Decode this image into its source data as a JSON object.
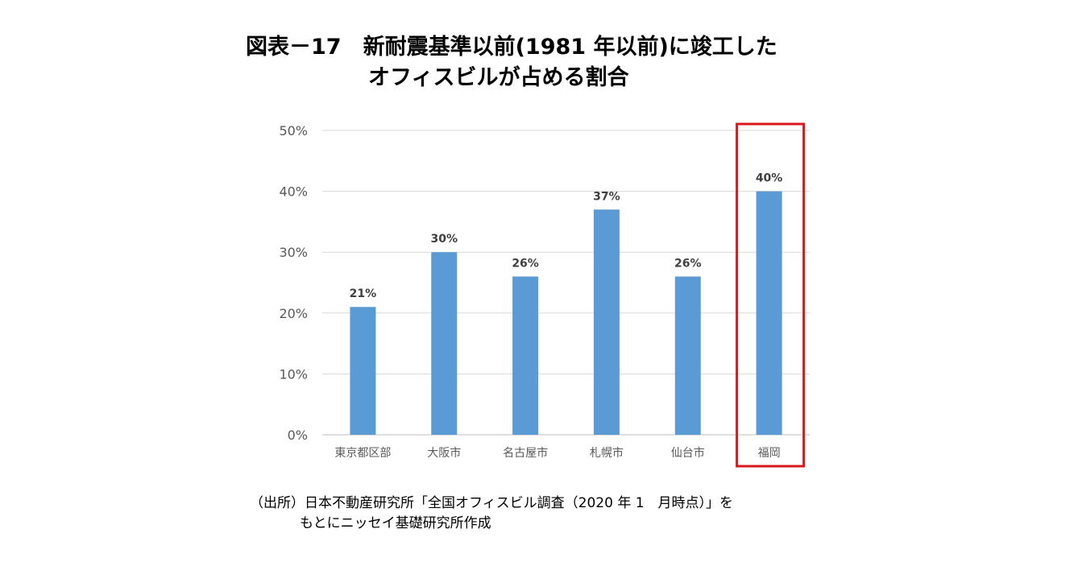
{
  "title_line1": "図表－17　新耐震基準以前(1981 年以前)に竣工した",
  "title_line2": "オフィスビルが占める割合",
  "source_line1": "（出所）日本不動産研究所「全国オフィスビル調査（2020 年 1　月時点）」を",
  "source_line2": "もとにニッセイ基礎研究所作成",
  "colors": {
    "bar": "#5b9bd5",
    "highlight_box": "#d9191c",
    "grid": "#d9d9d9",
    "tick_text": "#595959",
    "data_label": "#404040"
  },
  "chart_data": {
    "type": "bar",
    "categories": [
      "東京都区部",
      "大阪市",
      "名古屋市",
      "札幌市",
      "仙台市",
      "福岡"
    ],
    "values": [
      21,
      30,
      26,
      37,
      26,
      40
    ],
    "data_labels": [
      "21%",
      "30%",
      "26%",
      "37%",
      "26%",
      "40%"
    ],
    "y_ticks": [
      "0%",
      "10%",
      "20%",
      "30%",
      "40%",
      "50%"
    ],
    "ylim": [
      0,
      50
    ],
    "grid": true,
    "highlighted_category": "福岡"
  }
}
